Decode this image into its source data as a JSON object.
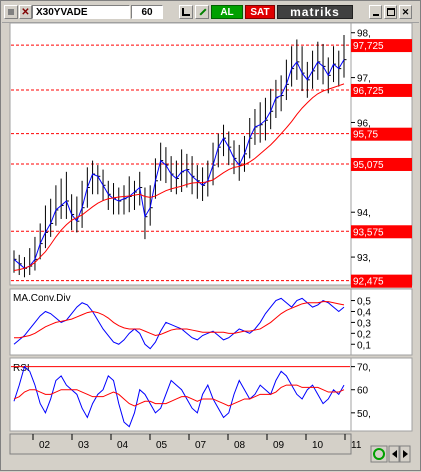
{
  "toolbar": {
    "symbol": "X30YVADE",
    "period": "60",
    "buy_label": "AL",
    "sell_label": "SAT",
    "brand": "matriks"
  },
  "colors": {
    "price": "#000000",
    "ma": "#ff0000",
    "level_box": "#ff0000",
    "macd": "#0000ff",
    "rsi": "#0000ff",
    "signal": "#ff0000"
  },
  "chart_data": [
    {
      "type": "line",
      "name": "price",
      "ylim": [
        92.4,
        98.15
      ],
      "y_ticks": [
        {
          "label": "98,",
          "value": 98
        },
        {
          "label": "97,",
          "value": 97
        },
        {
          "label": "96,",
          "value": 96
        },
        {
          "label": "94,",
          "value": 94
        },
        {
          "label": "93,",
          "value": 93
        }
      ],
      "level_labels": [
        {
          "label": "97,725",
          "value": 97.725
        },
        {
          "label": "96,725",
          "value": 96.725
        },
        {
          "label": "95,75",
          "value": 95.75
        },
        {
          "label": "95,075",
          "value": 95.075
        },
        {
          "label": "93,575",
          "value": 93.575
        },
        {
          "label": "92,475",
          "value": 92.475
        }
      ],
      "close": [
        92.95,
        92.85,
        92.75,
        92.8,
        92.95,
        93.3,
        93.55,
        93.75,
        94.05,
        94.15,
        94.25,
        93.95,
        93.8,
        94.1,
        94.55,
        94.85,
        94.8,
        94.6,
        94.4,
        94.3,
        94.25,
        94.3,
        94.35,
        94.45,
        94.55,
        93.9,
        94.1,
        94.7,
        95.15,
        95.05,
        94.85,
        94.75,
        94.9,
        94.95,
        94.8,
        94.7,
        94.6,
        94.7,
        95.05,
        95.45,
        95.65,
        95.45,
        95.2,
        95.05,
        95.3,
        95.65,
        95.9,
        95.95,
        96.05,
        96.25,
        96.55,
        96.6,
        96.85,
        97.2,
        97.35,
        97.1,
        96.95,
        97.15,
        97.35,
        97.25,
        97.05,
        97.3,
        97.2,
        97.4
      ],
      "high": [
        93.15,
        93.05,
        93.0,
        93.2,
        93.45,
        93.75,
        94.15,
        94.3,
        94.6,
        94.75,
        94.9,
        94.4,
        94.35,
        94.7,
        95.0,
        95.15,
        95.05,
        94.95,
        94.7,
        94.65,
        94.55,
        94.6,
        94.8,
        94.7,
        94.9,
        94.55,
        94.6,
        95.2,
        95.55,
        95.45,
        95.25,
        95.15,
        95.4,
        95.3,
        95.25,
        95.05,
        95.0,
        95.15,
        95.55,
        95.75,
        95.95,
        95.8,
        95.6,
        95.5,
        95.7,
        96.1,
        96.3,
        96.45,
        96.55,
        96.75,
        96.95,
        97.05,
        97.4,
        97.7,
        97.85,
        97.7,
        97.35,
        97.6,
        97.8,
        97.75,
        97.45,
        97.7,
        97.6,
        97.95
      ],
      "low": [
        92.65,
        92.6,
        92.55,
        92.6,
        92.7,
        92.95,
        93.2,
        93.45,
        93.7,
        93.85,
        93.85,
        93.6,
        93.55,
        93.65,
        94.1,
        94.4,
        94.4,
        94.25,
        94.05,
        93.95,
        93.95,
        93.95,
        94.0,
        94.05,
        94.15,
        93.4,
        93.7,
        94.3,
        94.7,
        94.65,
        94.45,
        94.4,
        94.45,
        94.55,
        94.4,
        94.3,
        94.25,
        94.35,
        94.6,
        95.0,
        95.25,
        95.05,
        94.85,
        94.7,
        94.9,
        95.2,
        95.5,
        95.55,
        95.6,
        95.85,
        96.1,
        96.25,
        96.5,
        96.8,
        96.95,
        96.7,
        96.55,
        96.75,
        96.95,
        96.85,
        96.65,
        96.9,
        96.8,
        97.0
      ],
      "ma": [
        92.7,
        92.72,
        92.75,
        92.8,
        92.88,
        93.0,
        93.12,
        93.28,
        93.45,
        93.6,
        93.72,
        93.82,
        93.88,
        93.94,
        94.03,
        94.12,
        94.2,
        94.26,
        94.3,
        94.32,
        94.34,
        94.35,
        94.36,
        94.38,
        94.4,
        94.35,
        94.33,
        94.36,
        94.42,
        94.48,
        94.52,
        94.55,
        94.58,
        94.62,
        94.65,
        94.66,
        94.66,
        94.68,
        94.72,
        94.8,
        94.88,
        94.95,
        95.0,
        95.02,
        95.06,
        95.12,
        95.2,
        95.3,
        95.4,
        95.5,
        95.62,
        95.75,
        95.88,
        96.02,
        96.18,
        96.32,
        96.44,
        96.55,
        96.64,
        96.7,
        96.74,
        96.78,
        96.82,
        96.86
      ]
    },
    {
      "type": "line",
      "title": "MA.Conv.Div",
      "ylim": [
        0.02,
        0.56
      ],
      "y_ticks": [
        {
          "label": "0,5",
          "value": 0.5
        },
        {
          "label": "0,4",
          "value": 0.4
        },
        {
          "label": "0,3",
          "value": 0.3
        },
        {
          "label": "0,2",
          "value": 0.2
        },
        {
          "label": "0,1",
          "value": 0.1
        }
      ],
      "series": [
        {
          "values": [
            0.1,
            0.14,
            0.18,
            0.24,
            0.3,
            0.36,
            0.4,
            0.38,
            0.34,
            0.3,
            0.32,
            0.38,
            0.44,
            0.48,
            0.46,
            0.4,
            0.32,
            0.24,
            0.18,
            0.12,
            0.1,
            0.14,
            0.2,
            0.24,
            0.2,
            0.1,
            0.06,
            0.12,
            0.22,
            0.3,
            0.28,
            0.26,
            0.24,
            0.2,
            0.16,
            0.14,
            0.18,
            0.2,
            0.22,
            0.18,
            0.14,
            0.16,
            0.2,
            0.24,
            0.22,
            0.2,
            0.24,
            0.3,
            0.38,
            0.44,
            0.5,
            0.52,
            0.48,
            0.44,
            0.5,
            0.52,
            0.48,
            0.44,
            0.46,
            0.5,
            0.48,
            0.44,
            0.4,
            0.44
          ]
        },
        {
          "values": [
            0.16,
            0.16,
            0.17,
            0.18,
            0.2,
            0.23,
            0.26,
            0.28,
            0.3,
            0.31,
            0.32,
            0.33,
            0.35,
            0.37,
            0.39,
            0.4,
            0.39,
            0.37,
            0.34,
            0.3,
            0.27,
            0.25,
            0.24,
            0.24,
            0.24,
            0.22,
            0.2,
            0.18,
            0.19,
            0.21,
            0.23,
            0.24,
            0.24,
            0.24,
            0.23,
            0.22,
            0.21,
            0.21,
            0.21,
            0.21,
            0.21,
            0.2,
            0.2,
            0.21,
            0.22,
            0.22,
            0.23,
            0.24,
            0.27,
            0.3,
            0.34,
            0.38,
            0.41,
            0.43,
            0.45,
            0.47,
            0.48,
            0.48,
            0.48,
            0.49,
            0.49,
            0.48,
            0.47,
            0.46
          ]
        }
      ]
    },
    {
      "type": "line",
      "title": "RSI",
      "ylim": [
        43,
        72
      ],
      "y_ticks": [
        {
          "label": "70,",
          "value": 70
        },
        {
          "label": "60",
          "value": 60
        },
        {
          "label": "50,",
          "value": 50
        }
      ],
      "series": [
        {
          "values": [
            55,
            62,
            70,
            68,
            62,
            54,
            50,
            56,
            64,
            66,
            62,
            60,
            58,
            52,
            48,
            54,
            58,
            60,
            66,
            64,
            54,
            46,
            44,
            50,
            60,
            58,
            54,
            50,
            52,
            58,
            64,
            62,
            60,
            56,
            52,
            50,
            58,
            62,
            56,
            52,
            48,
            50,
            58,
            64,
            60,
            56,
            58,
            62,
            60,
            58,
            64,
            68,
            66,
            62,
            58,
            56,
            60,
            62,
            58,
            54,
            56,
            60,
            58,
            62
          ]
        },
        {
          "values": [
            56,
            57,
            59,
            60,
            60,
            59,
            58,
            58,
            59,
            60,
            60,
            60,
            60,
            59,
            58,
            57,
            57,
            57,
            58,
            59,
            58,
            56,
            54,
            53,
            54,
            55,
            55,
            54,
            54,
            54,
            55,
            56,
            57,
            57,
            56,
            55,
            56,
            56,
            56,
            55,
            54,
            53,
            54,
            55,
            56,
            56,
            57,
            58,
            58,
            58,
            59,
            61,
            62,
            62,
            62,
            61,
            61,
            61,
            61,
            60,
            59,
            59,
            59,
            60
          ]
        }
      ]
    }
  ],
  "x_axis": {
    "tick_labels": [
      "02",
      "03",
      "04",
      "05",
      "07",
      "08",
      "09",
      "10",
      "11"
    ]
  }
}
